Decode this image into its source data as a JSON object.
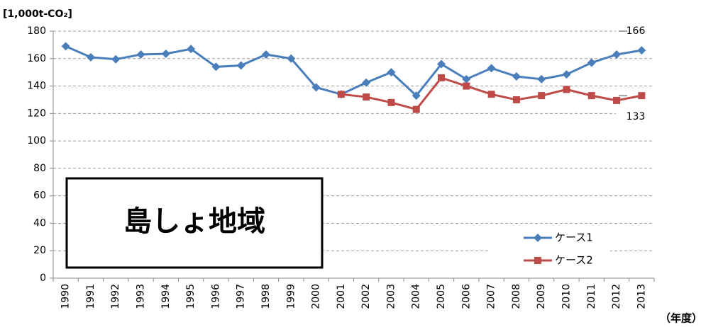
{
  "chart_data": {
    "type": "line",
    "y_label": "[1,000t-CO₂]",
    "x_label": "（年度）",
    "box_text": "島しょ地域",
    "categories": [
      "1990",
      "1991",
      "1992",
      "1993",
      "1994",
      "1995",
      "1996",
      "1997",
      "1998",
      "1999",
      "2000",
      "2001",
      "2002",
      "2003",
      "2004",
      "2005",
      "2006",
      "2007",
      "2008",
      "2009",
      "2010",
      "2011",
      "2012",
      "2013"
    ],
    "series": [
      {
        "name": "ケース1",
        "color": "#4a7ebb",
        "marker": "diamond",
        "values": [
          169,
          161,
          159.5,
          163,
          163.5,
          167,
          154,
          155,
          163,
          160,
          139,
          134,
          142.5,
          150,
          133,
          156,
          145,
          153,
          147,
          145,
          148.5,
          157,
          163,
          166
        ]
      },
      {
        "name": "ケース2",
        "color": "#be4b48",
        "marker": "square",
        "values": [
          null,
          null,
          null,
          null,
          null,
          null,
          null,
          null,
          null,
          null,
          null,
          134,
          132,
          128,
          123,
          146,
          140,
          134,
          130,
          133,
          137.5,
          133,
          129.5,
          133
        ]
      }
    ],
    "annotations": [
      {
        "text": "166"
      },
      {
        "text": "133"
      }
    ],
    "ylim": [
      0,
      180
    ],
    "yticks": [
      0,
      20,
      40,
      60,
      80,
      100,
      120,
      140,
      160,
      180
    ],
    "grid": true,
    "legend": "lower right"
  }
}
